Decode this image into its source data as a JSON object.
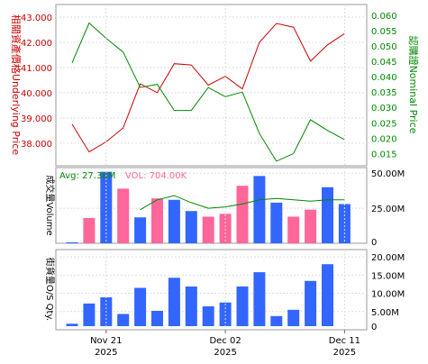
{
  "chart_data": [
    {
      "type": "line",
      "title": "",
      "left_axis_label": "相關資產價格Underlying Price",
      "right_axis_label": "認購證Nominal Price",
      "left_ticks": [
        "38.000",
        "39.000",
        "40.000",
        "41.000",
        "42.000",
        "43.000"
      ],
      "right_ticks": [
        "0.015",
        "0.020",
        "0.025",
        "0.030",
        "0.035",
        "0.040",
        "0.045",
        "0.050",
        "0.055",
        "0.060"
      ],
      "left_ylim": [
        37.1,
        43.5
      ],
      "right_ylim": [
        0.011,
        0.0635
      ],
      "series": [
        {
          "axis": "left",
          "color": "#cc0000",
          "values": [
            38.75,
            37.65,
            38.05,
            38.6,
            40.35,
            40.0,
            41.15,
            41.1,
            40.3,
            40.65,
            40.15,
            42.0,
            42.75,
            42.6,
            41.25,
            41.9,
            42.35
          ]
        },
        {
          "axis": "right",
          "color": "#008800",
          "values": [
            0.0445,
            0.0575,
            0.0525,
            0.048,
            0.0365,
            0.0375,
            0.029,
            0.029,
            0.0365,
            0.0335,
            0.035,
            0.0215,
            0.0125,
            0.015,
            0.026,
            0.0225,
            0.0195
          ]
        }
      ]
    },
    {
      "type": "bar",
      "title": "",
      "y_axis_label": "成交量Volume",
      "legend": {
        "avg_label": "Avg: 27.38M",
        "vol_label": "VOL: 704.00K"
      },
      "ticks": [
        "0",
        "25.00M",
        "50.00M"
      ],
      "ylim": [
        0,
        54
      ],
      "bars": [
        {
          "value": 0.7,
          "color": "#3366ff"
        },
        {
          "value": 18,
          "color": "#ff6699"
        },
        {
          "value": 51,
          "color": "#3366ff"
        },
        {
          "value": 39,
          "color": "#ff6699"
        },
        {
          "value": 18.5,
          "color": "#3366ff"
        },
        {
          "value": 32,
          "color": "#ff6699"
        },
        {
          "value": 31,
          "color": "#3366ff"
        },
        {
          "value": 23,
          "color": "#3366ff"
        },
        {
          "value": 19,
          "color": "#ff6699"
        },
        {
          "value": 21,
          "color": "#ff6699"
        },
        {
          "value": 41,
          "color": "#ff6699"
        },
        {
          "value": 48,
          "color": "#3366ff"
        },
        {
          "value": 29,
          "color": "#3366ff"
        },
        {
          "value": 19,
          "color": "#ff6699"
        },
        {
          "value": 24,
          "color": "#ff6699"
        },
        {
          "value": 40,
          "color": "#3366ff"
        },
        {
          "value": 28,
          "color": "#3366ff"
        }
      ],
      "avg_line": {
        "color": "#008800",
        "values": [
          null,
          null,
          null,
          null,
          24,
          31,
          34,
          29,
          25,
          26,
          28,
          31,
          32,
          31,
          30,
          31,
          31
        ]
      }
    },
    {
      "type": "bar",
      "title": "",
      "y_axis_label": "街貨量O/S Qty.",
      "ticks": [
        "0",
        "5.00M",
        "10.00M",
        "15.00M",
        "20.00M"
      ],
      "ylim": [
        0,
        22
      ],
      "color": "#3366ff",
      "values": [
        0.7,
        6.5,
        8.3,
        3.5,
        11.0,
        4.4,
        13.9,
        11.4,
        5.7,
        6.8,
        11.4,
        15.5,
        2.9,
        4.7,
        13.0,
        17.8,
        0
      ],
      "x_ticks": [
        {
          "label": "Nov 21",
          "year": "2025",
          "index": 2
        },
        {
          "label": "Dec 02",
          "year": "2025",
          "index": 9
        },
        {
          "label": "Dec 11",
          "year": "2025",
          "index": 16
        }
      ]
    }
  ]
}
